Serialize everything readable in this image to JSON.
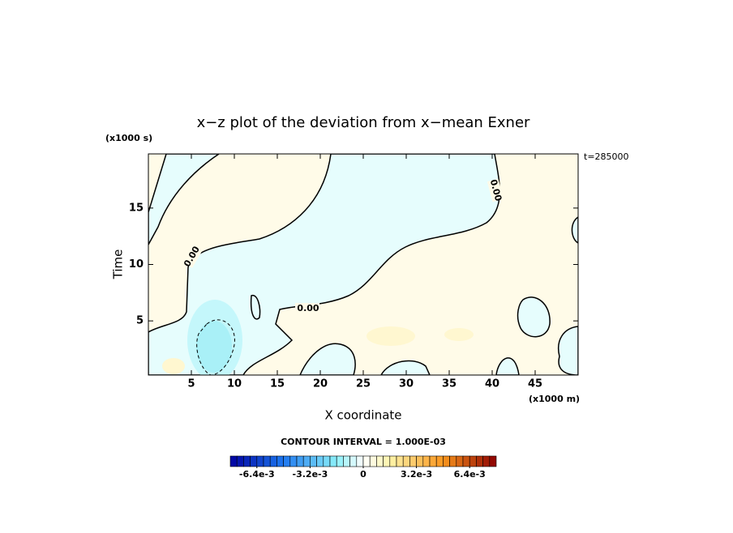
{
  "chart_data": {
    "type": "contour",
    "title": "x−z plot of the deviation from x−mean Exner",
    "x_label": "X coordinate",
    "y_label": "Time",
    "x_unit": "(x1000 m)",
    "y_unit": "(x1000 s)",
    "annotation": "t=285000",
    "xlim": [
      0,
      50
    ],
    "ylim": [
      0.2,
      19.8
    ],
    "xticks": [
      5,
      10,
      15,
      20,
      25,
      30,
      35,
      40,
      45
    ],
    "yticks": [
      5,
      10,
      15
    ],
    "contour_labels": [
      "0.00",
      "0.00",
      "0.00"
    ],
    "contour_interval": "CONTOUR INTERVAL = 1.000E-03",
    "colorbar": {
      "lim": [
        -0.008,
        0.008
      ],
      "ticks": [
        {
          "value": -0.0064,
          "label": "-6.4e-3"
        },
        {
          "value": -0.0032,
          "label": "-3.2e-3"
        },
        0,
        {
          "value": 0.0032,
          "label": "3.2e-3"
        },
        {
          "value": 0.0064,
          "label": "6.4e-3"
        }
      ]
    }
  }
}
